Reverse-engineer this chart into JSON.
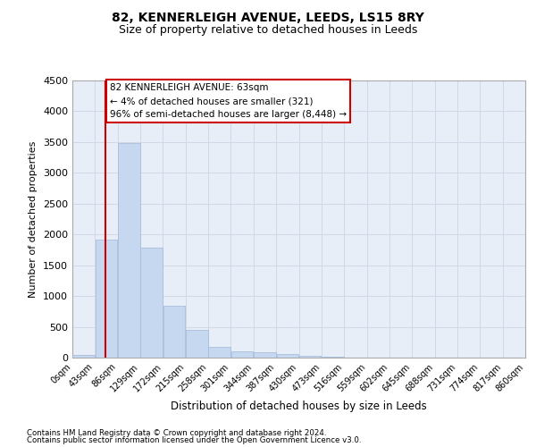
{
  "title_line1": "82, KENNERLEIGH AVENUE, LEEDS, LS15 8RY",
  "title_line2": "Size of property relative to detached houses in Leeds",
  "xlabel": "Distribution of detached houses by size in Leeds",
  "ylabel": "Number of detached properties",
  "footer_line1": "Contains HM Land Registry data © Crown copyright and database right 2024.",
  "footer_line2": "Contains public sector information licensed under the Open Government Licence v3.0.",
  "annotation_line1": "82 KENNERLEIGH AVENUE: 63sqm",
  "annotation_line2": "← 4% of detached houses are smaller (321)",
  "annotation_line3": "96% of semi-detached houses are larger (8,448) →",
  "property_size_sqm": 63,
  "bar_edges": [
    0,
    43,
    86,
    129,
    172,
    215,
    258,
    301,
    344,
    387,
    430,
    473,
    516,
    559,
    602,
    645,
    688,
    731,
    774,
    817,
    860
  ],
  "bar_heights": [
    50,
    1920,
    3490,
    1790,
    840,
    450,
    170,
    100,
    80,
    55,
    30,
    10,
    5,
    2,
    1,
    0,
    0,
    0,
    0,
    0
  ],
  "bar_color": "#c5d8f0",
  "bar_edge_color": "#a0b8d8",
  "red_line_color": "#cc0000",
  "annotation_box_color": "#cc0000",
  "grid_color": "#d0d8e8",
  "background_color": "#e8eef8",
  "ylim": [
    0,
    4500
  ],
  "yticks": [
    0,
    500,
    1000,
    1500,
    2000,
    2500,
    3000,
    3500,
    4000,
    4500
  ]
}
